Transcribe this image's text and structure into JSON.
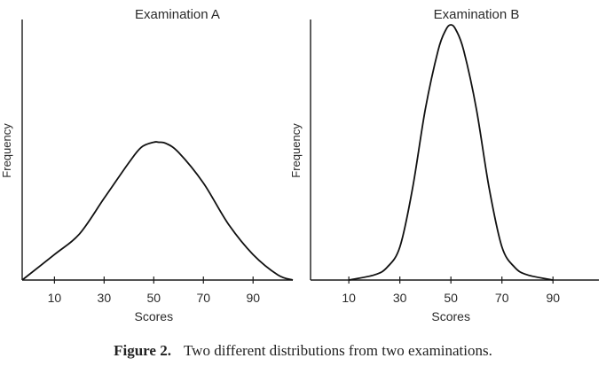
{
  "caption": {
    "label": "Figure 2.",
    "text": "Two different distributions from two examinations."
  },
  "chart_data": [
    {
      "type": "line",
      "title": "Examination A",
      "xlabel": "Scores",
      "ylabel": "Frequency",
      "xticks": [
        10,
        30,
        50,
        70,
        90
      ],
      "xlim": [
        -3,
        106
      ],
      "ylim": [
        0,
        1
      ],
      "y_ticks_shown": false,
      "series": [
        {
          "x": [
            -3,
            10,
            20,
            30,
            40,
            45,
            50,
            52,
            55,
            60,
            70,
            80,
            90,
            100,
            106
          ],
          "y": [
            0,
            0.1,
            0.18,
            0.32,
            0.46,
            0.52,
            0.54,
            0.54,
            0.535,
            0.5,
            0.38,
            0.22,
            0.1,
            0.02,
            0
          ]
        }
      ]
    },
    {
      "type": "line",
      "title": "Examination B",
      "xlabel": "Scores",
      "ylabel": "Frequency",
      "xticks": [
        10,
        30,
        50,
        70,
        90
      ],
      "xlim": [
        -5,
        108
      ],
      "ylim": [
        0,
        1
      ],
      "y_ticks_shown": false,
      "series": [
        {
          "x": [
            10,
            20,
            25,
            30,
            35,
            40,
            45,
            48,
            50,
            52,
            55,
            60,
            65,
            70,
            75,
            80,
            90
          ],
          "y": [
            0,
            0.02,
            0.05,
            0.13,
            0.36,
            0.67,
            0.9,
            0.98,
            1.0,
            0.98,
            0.9,
            0.67,
            0.36,
            0.13,
            0.05,
            0.02,
            0
          ]
        }
      ]
    }
  ]
}
